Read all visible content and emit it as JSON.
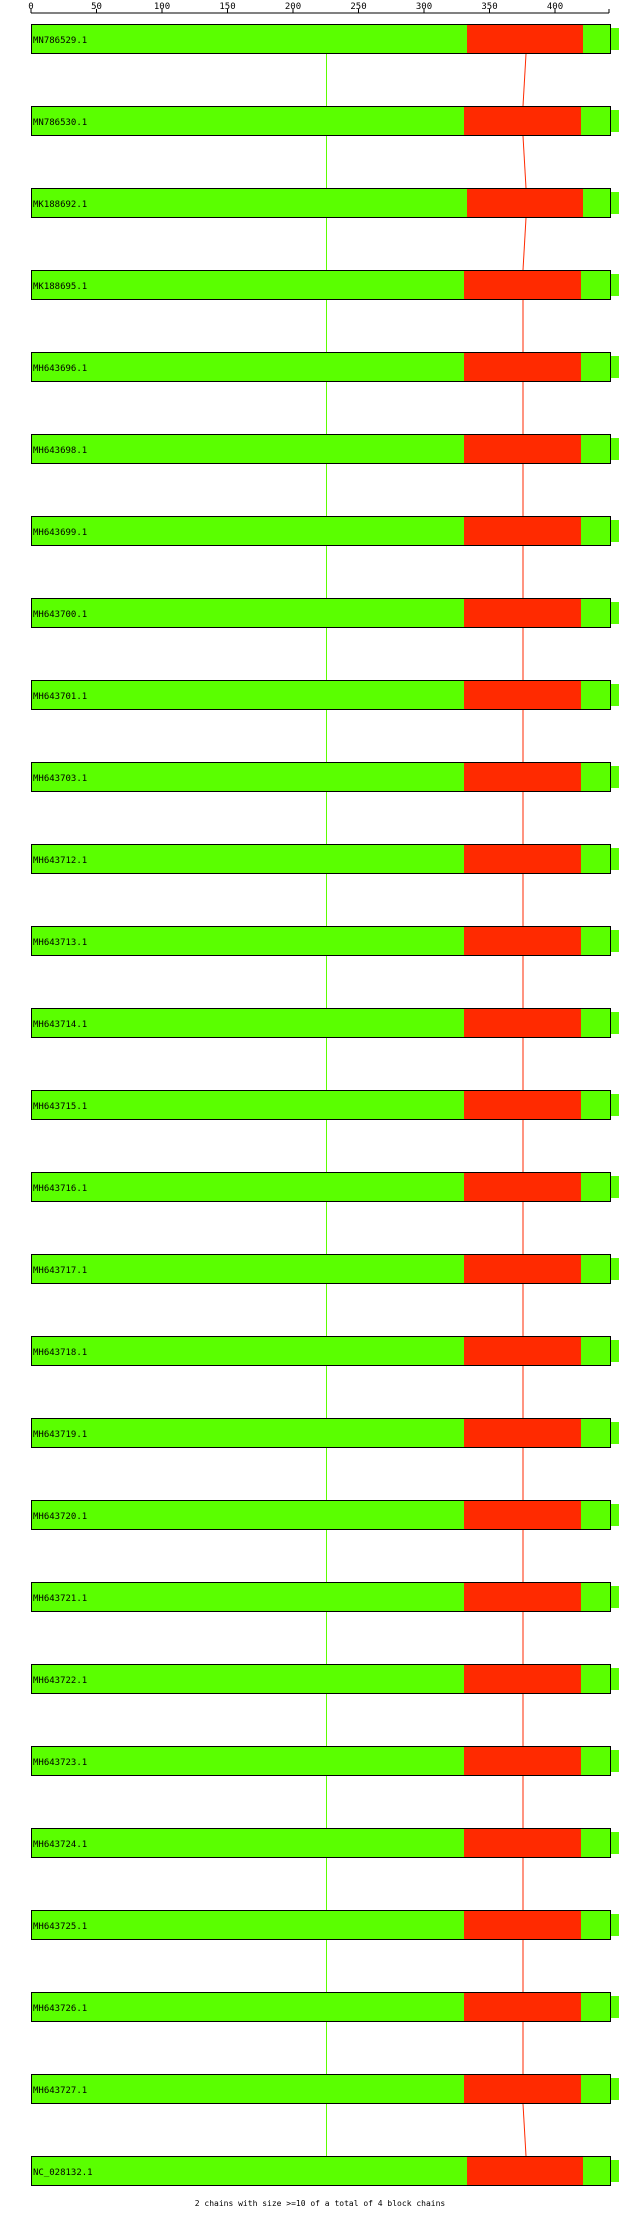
{
  "axis": {
    "ticks": [
      "0",
      "50",
      "100",
      "150",
      "200",
      "250",
      "300",
      "350",
      "400"
    ]
  },
  "colors": {
    "green": "#5aff00",
    "red": "#ff2a00",
    "outline": "#000000"
  },
  "rows": [
    {
      "label": "MN786529.1",
      "variant": "a"
    },
    {
      "label": "MN786530.1",
      "variant": "b"
    },
    {
      "label": "MK188692.1",
      "variant": "a"
    },
    {
      "label": "MK188695.1",
      "variant": "b"
    },
    {
      "label": "MH643696.1",
      "variant": "b"
    },
    {
      "label": "MH643698.1",
      "variant": "b"
    },
    {
      "label": "MH643699.1",
      "variant": "b"
    },
    {
      "label": "MH643700.1",
      "variant": "b"
    },
    {
      "label": "MH643701.1",
      "variant": "b"
    },
    {
      "label": "MH643703.1",
      "variant": "b"
    },
    {
      "label": "MH643712.1",
      "variant": "b"
    },
    {
      "label": "MH643713.1",
      "variant": "b"
    },
    {
      "label": "MH643714.1",
      "variant": "b"
    },
    {
      "label": "MH643715.1",
      "variant": "b"
    },
    {
      "label": "MH643716.1",
      "variant": "b"
    },
    {
      "label": "MH643717.1",
      "variant": "b"
    },
    {
      "label": "MH643718.1",
      "variant": "b"
    },
    {
      "label": "MH643719.1",
      "variant": "b"
    },
    {
      "label": "MH643720.1",
      "variant": "b"
    },
    {
      "label": "MH643721.1",
      "variant": "b"
    },
    {
      "label": "MH643722.1",
      "variant": "b"
    },
    {
      "label": "MH643723.1",
      "variant": "b"
    },
    {
      "label": "MH643724.1",
      "variant": "b"
    },
    {
      "label": "MH643725.1",
      "variant": "b"
    },
    {
      "label": "MH643726.1",
      "variant": "b"
    },
    {
      "label": "MH643727.1",
      "variant": "b"
    },
    {
      "label": "NC_028132.1",
      "variant": "a"
    }
  ],
  "footer": "2 chains with size >=10 of a total of 4 block chains"
}
